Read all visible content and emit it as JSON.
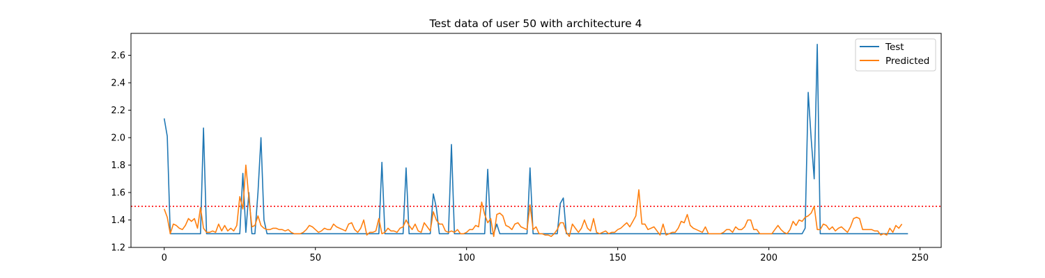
{
  "chart_data": {
    "type": "line",
    "title": "Test data of user 50 with architecture 4",
    "xlabel": "",
    "ylabel": "",
    "xlim": [
      -11,
      257
    ],
    "ylim": [
      1.2,
      2.76
    ],
    "x_ticks": [
      0,
      50,
      100,
      150,
      200,
      250
    ],
    "y_ticks": [
      1.2,
      1.4,
      1.6,
      1.8,
      2.0,
      2.2,
      2.4,
      2.6
    ],
    "x_tick_labels": [
      "0",
      "50",
      "100",
      "150",
      "200",
      "250"
    ],
    "y_tick_labels": [
      "1.2",
      "1.4",
      "1.6",
      "1.8",
      "2.0",
      "2.2",
      "2.4",
      "2.6"
    ],
    "grid": false,
    "legend_position": "top-right",
    "threshold": {
      "y": 1.5,
      "color": "#ff0000",
      "style": "dotted"
    },
    "series": [
      {
        "name": "Test",
        "color": "#1f77b4",
        "points": [
          [
            0,
            2.14
          ],
          [
            1,
            2.01
          ],
          [
            2,
            1.3
          ],
          [
            12,
            1.3
          ],
          [
            13,
            2.07
          ],
          [
            14,
            1.3
          ],
          [
            25,
            1.3
          ],
          [
            26,
            1.74
          ],
          [
            27,
            1.31
          ],
          [
            28,
            1.6
          ],
          [
            29,
            1.3
          ],
          [
            30,
            1.3
          ],
          [
            31,
            1.6
          ],
          [
            32,
            2.0
          ],
          [
            33,
            1.4
          ],
          [
            34,
            1.3
          ],
          [
            71,
            1.3
          ],
          [
            72,
            1.82
          ],
          [
            73,
            1.3
          ],
          [
            79,
            1.3
          ],
          [
            80,
            1.78
          ],
          [
            81,
            1.3
          ],
          [
            88,
            1.3
          ],
          [
            89,
            1.59
          ],
          [
            90,
            1.49
          ],
          [
            91,
            1.3
          ],
          [
            94,
            1.3
          ],
          [
            95,
            1.95
          ],
          [
            96,
            1.3
          ],
          [
            106,
            1.3
          ],
          [
            107,
            1.77
          ],
          [
            108,
            1.3
          ],
          [
            109,
            1.3
          ],
          [
            110,
            1.37
          ],
          [
            111,
            1.3
          ],
          [
            120,
            1.3
          ],
          [
            121,
            1.78
          ],
          [
            122,
            1.3
          ],
          [
            130,
            1.3
          ],
          [
            131,
            1.52
          ],
          [
            132,
            1.56
          ],
          [
            133,
            1.3
          ],
          [
            211,
            1.3
          ],
          [
            212,
            1.34
          ],
          [
            213,
            2.33
          ],
          [
            214,
            1.99
          ],
          [
            215,
            1.7
          ],
          [
            216,
            2.68
          ],
          [
            217,
            1.3
          ],
          [
            246,
            1.3
          ]
        ]
      },
      {
        "name": "Predicted",
        "color": "#ff7f0e",
        "points": [
          [
            0,
            1.48
          ],
          [
            1,
            1.42
          ],
          [
            2,
            1.3
          ],
          [
            3,
            1.37
          ],
          [
            4,
            1.36
          ],
          [
            5,
            1.34
          ],
          [
            6,
            1.33
          ],
          [
            7,
            1.36
          ],
          [
            8,
            1.41
          ],
          [
            9,
            1.39
          ],
          [
            10,
            1.41
          ],
          [
            11,
            1.34
          ],
          [
            12,
            1.49
          ],
          [
            13,
            1.34
          ],
          [
            14,
            1.31
          ],
          [
            15,
            1.31
          ],
          [
            16,
            1.32
          ],
          [
            17,
            1.31
          ],
          [
            18,
            1.37
          ],
          [
            19,
            1.32
          ],
          [
            20,
            1.36
          ],
          [
            21,
            1.32
          ],
          [
            22,
            1.34
          ],
          [
            23,
            1.32
          ],
          [
            24,
            1.36
          ],
          [
            25,
            1.57
          ],
          [
            26,
            1.48
          ],
          [
            27,
            1.8
          ],
          [
            28,
            1.56
          ],
          [
            29,
            1.35
          ],
          [
            30,
            1.36
          ],
          [
            31,
            1.43
          ],
          [
            32,
            1.36
          ],
          [
            33,
            1.34
          ],
          [
            34,
            1.33
          ],
          [
            35,
            1.33
          ],
          [
            36,
            1.34
          ],
          [
            37,
            1.34
          ],
          [
            38,
            1.33
          ],
          [
            39,
            1.33
          ],
          [
            40,
            1.32
          ],
          [
            41,
            1.33
          ],
          [
            42,
            1.31
          ],
          [
            43,
            1.3
          ],
          [
            44,
            1.3
          ],
          [
            45,
            1.3
          ],
          [
            46,
            1.31
          ],
          [
            47,
            1.33
          ],
          [
            48,
            1.36
          ],
          [
            49,
            1.35
          ],
          [
            50,
            1.33
          ],
          [
            51,
            1.31
          ],
          [
            52,
            1.32
          ],
          [
            53,
            1.34
          ],
          [
            54,
            1.33
          ],
          [
            55,
            1.33
          ],
          [
            56,
            1.37
          ],
          [
            57,
            1.35
          ],
          [
            58,
            1.34
          ],
          [
            59,
            1.33
          ],
          [
            60,
            1.32
          ],
          [
            61,
            1.37
          ],
          [
            62,
            1.38
          ],
          [
            63,
            1.33
          ],
          [
            64,
            1.31
          ],
          [
            65,
            1.34
          ],
          [
            66,
            1.4
          ],
          [
            67,
            1.29
          ],
          [
            68,
            1.31
          ],
          [
            69,
            1.31
          ],
          [
            70,
            1.32
          ],
          [
            71,
            1.41
          ],
          [
            72,
            1.3
          ],
          [
            73,
            1.31
          ],
          [
            74,
            1.34
          ],
          [
            75,
            1.32
          ],
          [
            76,
            1.32
          ],
          [
            77,
            1.31
          ],
          [
            78,
            1.34
          ],
          [
            79,
            1.35
          ],
          [
            80,
            1.4
          ],
          [
            81,
            1.36
          ],
          [
            82,
            1.33
          ],
          [
            83,
            1.37
          ],
          [
            84,
            1.32
          ],
          [
            85,
            1.31
          ],
          [
            86,
            1.38
          ],
          [
            87,
            1.35
          ],
          [
            88,
            1.32
          ],
          [
            89,
            1.46
          ],
          [
            90,
            1.4
          ],
          [
            91,
            1.37
          ],
          [
            92,
            1.37
          ],
          [
            93,
            1.32
          ],
          [
            94,
            1.31
          ],
          [
            95,
            1.32
          ],
          [
            96,
            1.31
          ],
          [
            97,
            1.33
          ],
          [
            98,
            1.3
          ],
          [
            99,
            1.3
          ],
          [
            100,
            1.31
          ],
          [
            101,
            1.33
          ],
          [
            102,
            1.33
          ],
          [
            103,
            1.36
          ],
          [
            104,
            1.35
          ],
          [
            105,
            1.53
          ],
          [
            106,
            1.44
          ],
          [
            107,
            1.38
          ],
          [
            108,
            1.41
          ],
          [
            109,
            1.28
          ],
          [
            110,
            1.44
          ],
          [
            111,
            1.45
          ],
          [
            112,
            1.43
          ],
          [
            113,
            1.36
          ],
          [
            114,
            1.35
          ],
          [
            115,
            1.33
          ],
          [
            116,
            1.37
          ],
          [
            117,
            1.38
          ],
          [
            118,
            1.35
          ],
          [
            119,
            1.34
          ],
          [
            120,
            1.33
          ],
          [
            121,
            1.51
          ],
          [
            122,
            1.33
          ],
          [
            123,
            1.35
          ],
          [
            124,
            1.3
          ],
          [
            125,
            1.3
          ],
          [
            126,
            1.29
          ],
          [
            127,
            1.29
          ],
          [
            128,
            1.28
          ],
          [
            129,
            1.3
          ],
          [
            130,
            1.33
          ],
          [
            131,
            1.38
          ],
          [
            132,
            1.38
          ],
          [
            133,
            1.31
          ],
          [
            134,
            1.28
          ],
          [
            135,
            1.37
          ],
          [
            136,
            1.34
          ],
          [
            137,
            1.31
          ],
          [
            138,
            1.34
          ],
          [
            139,
            1.4
          ],
          [
            140,
            1.34
          ],
          [
            141,
            1.32
          ],
          [
            142,
            1.41
          ],
          [
            143,
            1.31
          ],
          [
            144,
            1.3
          ],
          [
            145,
            1.31
          ],
          [
            146,
            1.32
          ],
          [
            147,
            1.3
          ],
          [
            148,
            1.31
          ],
          [
            149,
            1.31
          ],
          [
            150,
            1.33
          ],
          [
            151,
            1.34
          ],
          [
            152,
            1.36
          ],
          [
            153,
            1.38
          ],
          [
            154,
            1.35
          ],
          [
            155,
            1.39
          ],
          [
            156,
            1.43
          ],
          [
            157,
            1.62
          ],
          [
            158,
            1.37
          ],
          [
            159,
            1.37
          ],
          [
            160,
            1.33
          ],
          [
            161,
            1.34
          ],
          [
            162,
            1.35
          ],
          [
            163,
            1.32
          ],
          [
            164,
            1.29
          ],
          [
            165,
            1.37
          ],
          [
            166,
            1.29
          ],
          [
            167,
            1.3
          ],
          [
            168,
            1.31
          ],
          [
            169,
            1.31
          ],
          [
            170,
            1.34
          ],
          [
            171,
            1.39
          ],
          [
            172,
            1.38
          ],
          [
            173,
            1.44
          ],
          [
            174,
            1.36
          ],
          [
            175,
            1.34
          ],
          [
            176,
            1.33
          ],
          [
            177,
            1.32
          ],
          [
            178,
            1.31
          ],
          [
            179,
            1.35
          ],
          [
            180,
            1.3
          ],
          [
            181,
            1.3
          ],
          [
            182,
            1.3
          ],
          [
            183,
            1.3
          ],
          [
            184,
            1.3
          ],
          [
            185,
            1.31
          ],
          [
            186,
            1.33
          ],
          [
            187,
            1.33
          ],
          [
            188,
            1.31
          ],
          [
            189,
            1.35
          ],
          [
            190,
            1.33
          ],
          [
            191,
            1.33
          ],
          [
            192,
            1.35
          ],
          [
            193,
            1.4
          ],
          [
            194,
            1.4
          ],
          [
            195,
            1.33
          ],
          [
            196,
            1.33
          ],
          [
            197,
            1.3
          ],
          [
            198,
            1.3
          ],
          [
            199,
            1.3
          ],
          [
            200,
            1.3
          ],
          [
            201,
            1.3
          ],
          [
            202,
            1.33
          ],
          [
            203,
            1.36
          ],
          [
            204,
            1.33
          ],
          [
            205,
            1.31
          ],
          [
            206,
            1.3
          ],
          [
            207,
            1.33
          ],
          [
            208,
            1.39
          ],
          [
            209,
            1.36
          ],
          [
            210,
            1.4
          ],
          [
            211,
            1.39
          ],
          [
            212,
            1.42
          ],
          [
            213,
            1.43
          ],
          [
            214,
            1.45
          ],
          [
            215,
            1.5
          ],
          [
            216,
            1.33
          ],
          [
            217,
            1.33
          ],
          [
            218,
            1.37
          ],
          [
            219,
            1.36
          ],
          [
            220,
            1.33
          ],
          [
            221,
            1.35
          ],
          [
            222,
            1.32
          ],
          [
            223,
            1.34
          ],
          [
            224,
            1.35
          ],
          [
            225,
            1.33
          ],
          [
            226,
            1.31
          ],
          [
            227,
            1.35
          ],
          [
            228,
            1.41
          ],
          [
            229,
            1.42
          ],
          [
            230,
            1.41
          ],
          [
            231,
            1.33
          ],
          [
            232,
            1.33
          ],
          [
            233,
            1.33
          ],
          [
            234,
            1.33
          ],
          [
            235,
            1.32
          ],
          [
            236,
            1.32
          ],
          [
            237,
            1.29
          ],
          [
            238,
            1.3
          ],
          [
            239,
            1.29
          ],
          [
            240,
            1.34
          ],
          [
            241,
            1.31
          ],
          [
            242,
            1.36
          ],
          [
            243,
            1.34
          ],
          [
            244,
            1.37
          ]
        ]
      }
    ]
  }
}
